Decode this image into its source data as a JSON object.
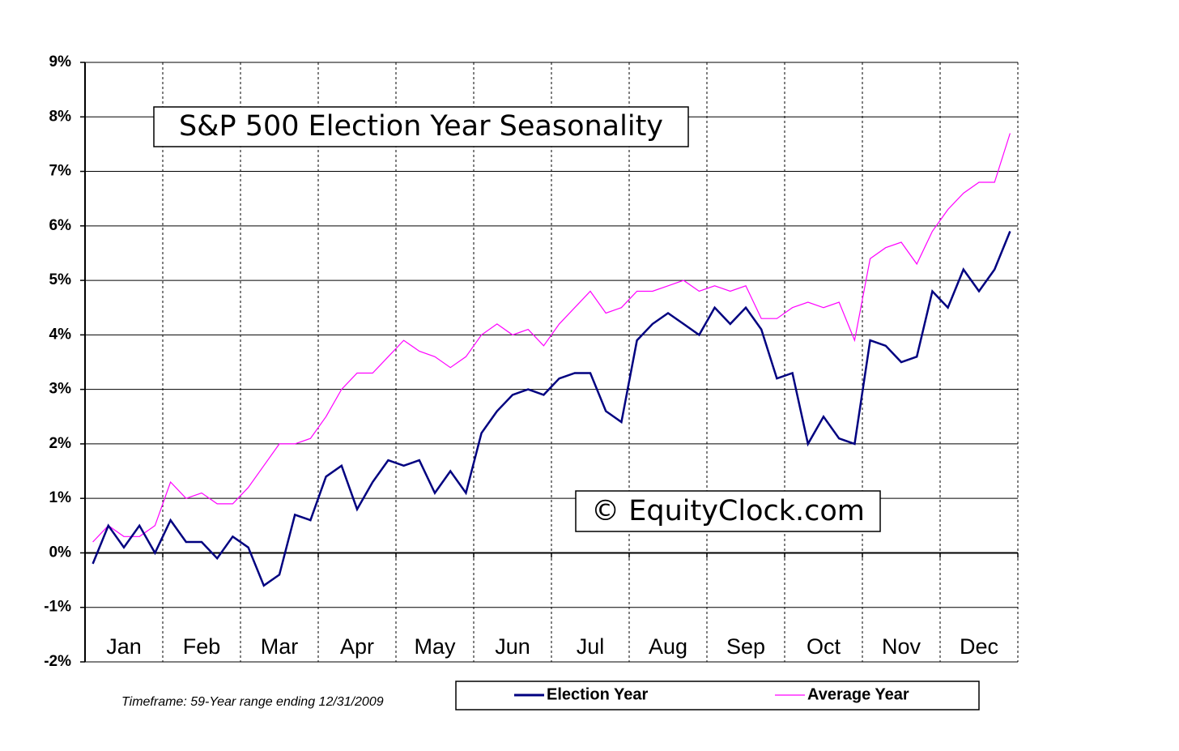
{
  "chart_data": {
    "type": "line",
    "title": "S&P 500 Election Year Seasonality",
    "annotations": [
      "© EquityClock.com",
      "Timeframe: 59-Year range ending 12/31/2009"
    ],
    "categories": [
      null,
      null,
      "Jan",
      null,
      null,
      null,
      null,
      "Feb",
      null,
      null,
      null,
      null,
      "Mar",
      null,
      null,
      null,
      null,
      "Apr",
      null,
      null,
      null,
      null,
      "May",
      null,
      null,
      null,
      null,
      "Jun",
      null,
      null,
      null,
      null,
      "Jul",
      null,
      null,
      null,
      null,
      "Aug",
      null,
      null,
      null,
      null,
      "Sep",
      null,
      null,
      null,
      null,
      "Oct",
      null,
      null,
      null,
      null,
      "Nov",
      null,
      null,
      null,
      null,
      "Dec",
      null,
      null
    ],
    "series": [
      {
        "name": "Election Year",
        "color": "#000080",
        "values": [
          -0.2,
          0.5,
          0.1,
          0.5,
          0.0,
          0.6,
          0.2,
          0.2,
          -0.1,
          0.3,
          0.1,
          -0.6,
          -0.4,
          0.7,
          0.6,
          1.4,
          1.6,
          0.8,
          1.3,
          1.7,
          1.6,
          1.7,
          1.1,
          1.5,
          1.1,
          2.2,
          2.6,
          2.9,
          3.0,
          2.9,
          3.2,
          3.3,
          3.3,
          2.6,
          2.4,
          3.9,
          4.2,
          4.4,
          4.2,
          4.0,
          4.5,
          4.2,
          4.5,
          4.1,
          3.2,
          3.3,
          2.0,
          2.5,
          2.1,
          2.0,
          3.9,
          3.8,
          3.5,
          3.6,
          4.8,
          4.5,
          5.2,
          4.8,
          5.2,
          5.9
        ]
      },
      {
        "name": "Average Year",
        "color": "#ff00ff",
        "values": [
          0.2,
          0.5,
          0.3,
          0.3,
          0.5,
          1.3,
          1.0,
          1.1,
          0.9,
          0.9,
          1.2,
          1.6,
          2.0,
          2.0,
          2.1,
          2.5,
          3.0,
          3.3,
          3.3,
          3.6,
          3.9,
          3.7,
          3.6,
          3.4,
          3.6,
          4.0,
          4.2,
          4.0,
          4.1,
          3.8,
          4.2,
          4.5,
          4.8,
          4.4,
          4.5,
          4.8,
          4.8,
          4.9,
          5.0,
          4.8,
          4.9,
          4.8,
          4.9,
          4.3,
          4.3,
          4.5,
          4.6,
          4.5,
          4.6,
          3.9,
          5.4,
          5.6,
          5.7,
          5.3,
          5.9,
          6.3,
          6.6,
          6.8,
          6.8,
          7.7
        ]
      }
    ],
    "ylim": [
      -2,
      9
    ],
    "yticks": [
      {
        "value": -2,
        "label": "-2%"
      },
      {
        "value": -1,
        "label": "-1%"
      },
      {
        "value": 0,
        "label": "0%"
      },
      {
        "value": 1,
        "label": "1%"
      },
      {
        "value": 2,
        "label": "2%"
      },
      {
        "value": 3,
        "label": "3%"
      },
      {
        "value": 4,
        "label": "4%"
      },
      {
        "value": 5,
        "label": "5%"
      },
      {
        "value": 6,
        "label": "6%"
      },
      {
        "value": 7,
        "label": "7%"
      },
      {
        "value": 8,
        "label": "8%"
      },
      {
        "value": 9,
        "label": "9%"
      }
    ],
    "grid": true,
    "legend": "bottom"
  }
}
